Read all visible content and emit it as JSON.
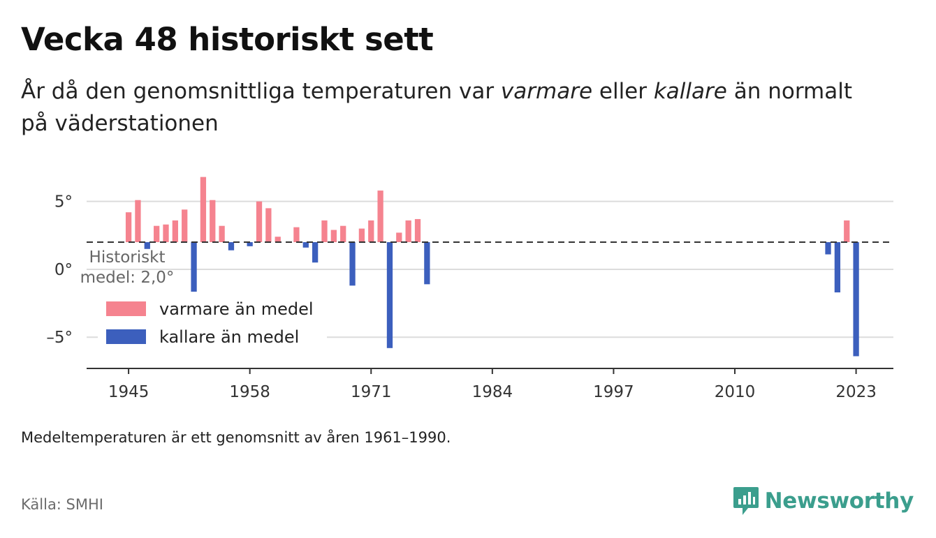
{
  "header": {
    "title": "Vecka 48 historiskt sett",
    "subtitle_part1": "År då den genomsnittliga temperaturen var ",
    "subtitle_warm": "varmare",
    "subtitle_part2": " eller ",
    "subtitle_cold": "kallare",
    "subtitle_part3": " än normalt på väderstationen"
  },
  "chart_data": {
    "type": "bar",
    "baseline": 2.0,
    "baseline_label": [
      "Historiskt",
      "medel: 2,0°"
    ],
    "ylim": [
      -7.3,
      7.5
    ],
    "yticks": [
      5,
      0,
      -5
    ],
    "ytick_labels": [
      "5°",
      "0°",
      "–5°"
    ],
    "xlim": [
      1940.5,
      2027
    ],
    "xticks": [
      1945,
      1958,
      1971,
      1984,
      1997,
      2010,
      2023
    ],
    "xtick_labels": [
      "1945",
      "1958",
      "1971",
      "1984",
      "1997",
      "2010",
      "2023"
    ],
    "legend": {
      "position": "lower-left",
      "warm_label": "varmare än medel",
      "cold_label": "kallare än medel"
    },
    "colors": {
      "warm": "#f5838f",
      "cold": "#3c5fbd",
      "grid": "#dcdcdc",
      "axis": "#333333",
      "baseline": "#333333"
    },
    "series": [
      {
        "x": 1945,
        "value": 4.2
      },
      {
        "x": 1946,
        "value": 5.1
      },
      {
        "x": 1947,
        "value": 1.5
      },
      {
        "x": 1948,
        "value": 3.2
      },
      {
        "x": 1949,
        "value": 3.3
      },
      {
        "x": 1950,
        "value": 3.6
      },
      {
        "x": 1951,
        "value": 4.4
      },
      {
        "x": 1952,
        "value": -1.8
      },
      {
        "x": 1953,
        "value": 6.8
      },
      {
        "x": 1954,
        "value": 5.1
      },
      {
        "x": 1955,
        "value": 3.2
      },
      {
        "x": 1956,
        "value": 1.4
      },
      {
        "x": 1958,
        "value": 1.7
      },
      {
        "x": 1959,
        "value": 5.0
      },
      {
        "x": 1960,
        "value": 4.5
      },
      {
        "x": 1961,
        "value": 2.4
      },
      {
        "x": 1963,
        "value": 3.1
      },
      {
        "x": 1964,
        "value": 1.6
      },
      {
        "x": 1965,
        "value": 0.5
      },
      {
        "x": 1966,
        "value": 3.6
      },
      {
        "x": 1967,
        "value": 2.9
      },
      {
        "x": 1968,
        "value": 3.2
      },
      {
        "x": 1969,
        "value": -1.2
      },
      {
        "x": 1970,
        "value": 3.0
      },
      {
        "x": 1971,
        "value": 3.6
      },
      {
        "x": 1972,
        "value": 5.8
      },
      {
        "x": 1973,
        "value": -5.8
      },
      {
        "x": 1974,
        "value": 2.7
      },
      {
        "x": 1975,
        "value": 3.6
      },
      {
        "x": 1976,
        "value": 3.7
      },
      {
        "x": 1977,
        "value": -1.1
      },
      {
        "x": 2020,
        "value": 1.1
      },
      {
        "x": 2021,
        "value": -1.7
      },
      {
        "x": 2022,
        "value": 3.6
      },
      {
        "x": 2023,
        "value": -6.4
      }
    ]
  },
  "footer": {
    "note": "Medeltemperaturen är ett genomsnitt av åren 1961–1990.",
    "source": "Källa: SMHI",
    "brand": "Newsworthy"
  }
}
